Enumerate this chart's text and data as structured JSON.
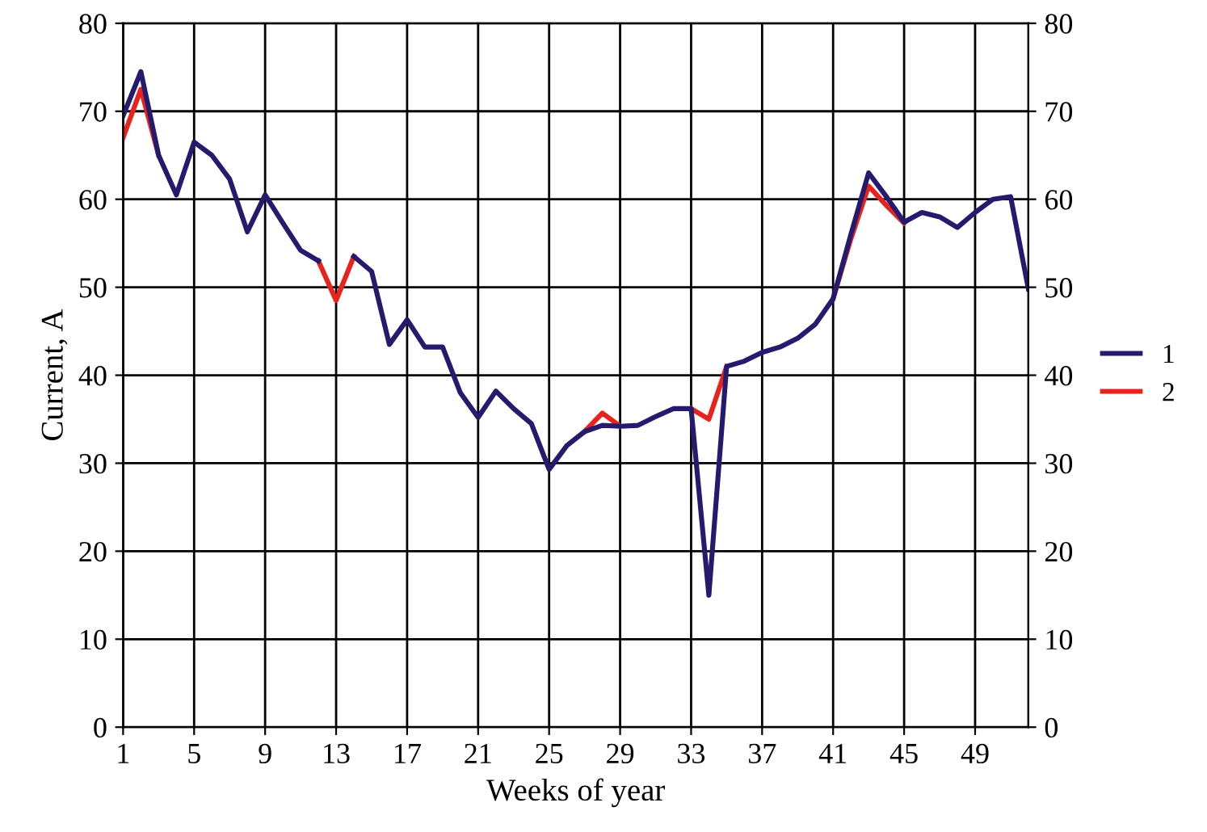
{
  "chart_data": {
    "type": "line",
    "xlabel": "Weeks of year",
    "ylabel": "Current, A",
    "x": [
      1,
      2,
      3,
      4,
      5,
      6,
      7,
      8,
      9,
      10,
      11,
      12,
      13,
      14,
      15,
      16,
      17,
      18,
      19,
      20,
      21,
      22,
      23,
      24,
      25,
      26,
      27,
      28,
      29,
      30,
      31,
      32,
      33,
      34,
      35,
      36,
      37,
      38,
      39,
      40,
      41,
      42,
      43,
      44,
      45,
      46,
      47,
      48,
      49,
      50,
      51,
      52
    ],
    "series": [
      {
        "name": "1",
        "color": "#241a6e",
        "values": [
          69.5,
          74.5,
          65,
          60.5,
          66.5,
          65,
          62.3,
          56.3,
          60.5,
          57.3,
          54.2,
          53,
          null,
          53.5,
          51.8,
          43.5,
          46.3,
          43.2,
          43.2,
          38,
          35.2,
          38.2,
          36.2,
          34.5,
          29.3,
          32,
          33.6,
          34.3,
          34.2,
          34.3,
          35.3,
          36.2,
          36.2,
          15,
          41,
          41.6,
          42.6,
          43.2,
          44.2,
          45.8,
          48.7,
          56,
          63,
          60.3,
          57.4,
          58.5,
          58,
          56.8,
          58.5,
          60,
          60.3,
          49.8
        ]
      },
      {
        "name": "2",
        "color": "#e8231e",
        "values": [
          67,
          72.5,
          65,
          null,
          null,
          null,
          null,
          null,
          null,
          null,
          null,
          53,
          48.5,
          53.5,
          null,
          null,
          null,
          null,
          null,
          null,
          null,
          null,
          null,
          null,
          null,
          null,
          33.6,
          35.7,
          34.2,
          null,
          null,
          null,
          36.2,
          35,
          41,
          null,
          null,
          null,
          null,
          null,
          48.7,
          55.5,
          61.5,
          59.3,
          57.3,
          null,
          null,
          null,
          null,
          null,
          null,
          null
        ]
      }
    ],
    "xlim": [
      1,
      52
    ],
    "xticks": [
      1,
      5,
      9,
      13,
      17,
      21,
      25,
      29,
      33,
      37,
      41,
      45,
      49
    ],
    "ylim": [
      0,
      80
    ],
    "yticks": [
      0,
      10,
      20,
      30,
      40,
      50,
      60,
      70,
      80
    ],
    "y2lim": [
      0,
      80
    ],
    "y2ticks": [
      0,
      10,
      20,
      30,
      40,
      50,
      60,
      70,
      80
    ],
    "grid": true,
    "legend": "right",
    "marker": "none",
    "line_style": "solid"
  }
}
